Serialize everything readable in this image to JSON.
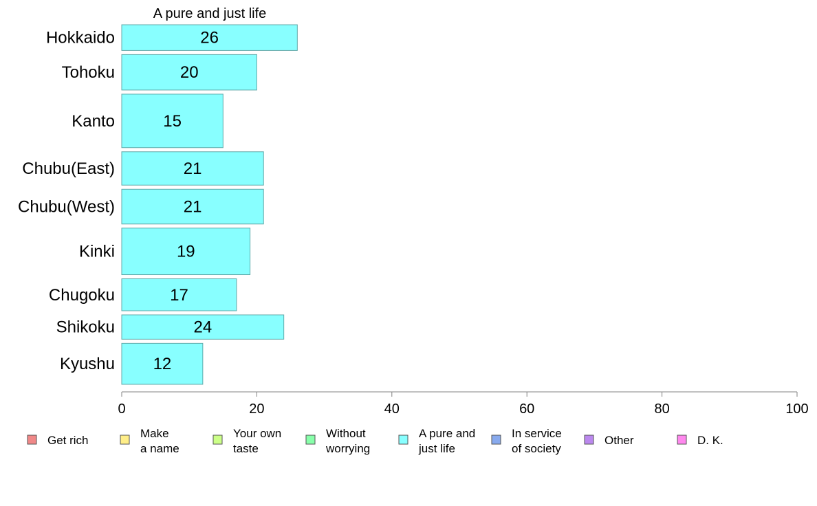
{
  "chart_data": {
    "type": "bar",
    "orientation": "horizontal",
    "title": "A pure and just life",
    "categories": [
      "Hokkaido",
      "Tohoku",
      "Kanto",
      "Chubu(East)",
      "Chubu(West)",
      "Kinki",
      "Chugoku",
      "Shikoku",
      "Kyushu"
    ],
    "row_weights": [
      37,
      51,
      77,
      48,
      50,
      67,
      46,
      35,
      59
    ],
    "series": [
      {
        "name": "A pure and just life",
        "values": [
          26,
          20,
          15,
          21,
          21,
          19,
          17,
          24,
          12
        ],
        "color": "#88ffff"
      }
    ],
    "xlim": [
      0,
      100
    ],
    "xticks": [
      0,
      20,
      40,
      60,
      80,
      100
    ],
    "grid": false,
    "legend_position": "bottom",
    "legend": [
      {
        "label": [
          "Get rich"
        ],
        "color": "#f08888"
      },
      {
        "label": [
          "Make",
          "a name"
        ],
        "color": "#ffee88"
      },
      {
        "label": [
          "Your own",
          "taste"
        ],
        "color": "#ccff88"
      },
      {
        "label": [
          "Without",
          "worrying"
        ],
        "color": "#88ffaa"
      },
      {
        "label": [
          "A pure and",
          "just life"
        ],
        "color": "#88ffff"
      },
      {
        "label": [
          "In service",
          "of society"
        ],
        "color": "#88aaee"
      },
      {
        "label": [
          "Other"
        ],
        "color": "#bb88ee"
      },
      {
        "label": [
          "D. K."
        ],
        "color": "#ff88ee"
      }
    ]
  }
}
